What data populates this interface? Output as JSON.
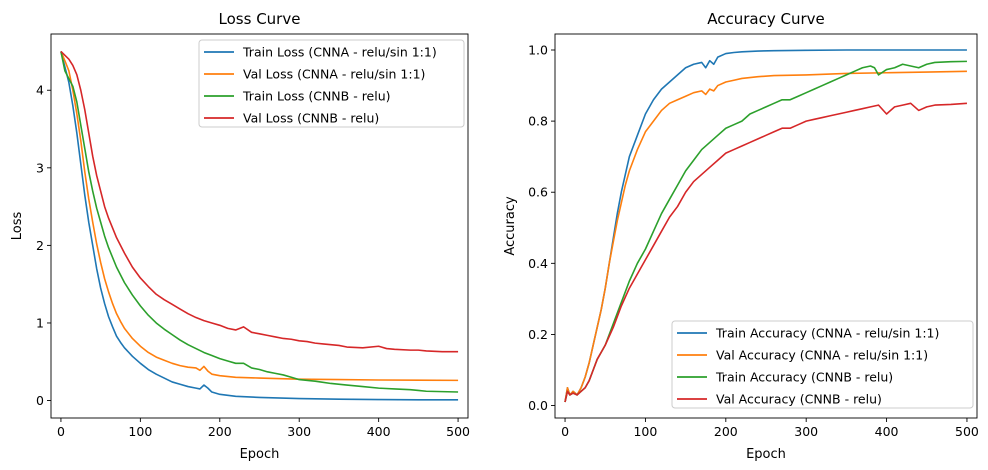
{
  "chart_data": [
    {
      "type": "line",
      "title": "Loss Curve",
      "xlabel": "Epoch",
      "ylabel": "Loss",
      "xlim": [
        -12.5,
        512.5
      ],
      "ylim": [
        -0.225,
        4.725
      ],
      "xticks": [
        0,
        100,
        200,
        300,
        400,
        500
      ],
      "yticks": [
        0,
        1,
        2,
        3,
        4
      ],
      "legend": "top-right",
      "series": [
        {
          "name": "Train Loss (CNNA - relu/sin 1:1)",
          "color": "#1f77b4",
          "x": [
            0,
            5,
            10,
            15,
            20,
            25,
            30,
            35,
            40,
            45,
            50,
            55,
            60,
            65,
            70,
            75,
            80,
            90,
            100,
            110,
            120,
            130,
            140,
            150,
            160,
            170,
            175,
            180,
            185,
            190,
            200,
            220,
            250,
            300,
            350,
            400,
            450,
            500
          ],
          "y": [
            4.5,
            4.3,
            4.1,
            3.8,
            3.45,
            3.05,
            2.65,
            2.3,
            2.0,
            1.7,
            1.45,
            1.25,
            1.08,
            0.95,
            0.83,
            0.75,
            0.68,
            0.57,
            0.48,
            0.4,
            0.34,
            0.29,
            0.24,
            0.21,
            0.18,
            0.16,
            0.15,
            0.2,
            0.16,
            0.11,
            0.08,
            0.055,
            0.04,
            0.025,
            0.018,
            0.013,
            0.01,
            0.01
          ]
        },
        {
          "name": "Val Loss (CNNA - relu/sin 1:1)",
          "color": "#ff7f0e",
          "x": [
            0,
            5,
            10,
            15,
            20,
            25,
            30,
            35,
            40,
            45,
            50,
            55,
            60,
            65,
            70,
            75,
            80,
            90,
            100,
            110,
            120,
            130,
            140,
            150,
            160,
            170,
            175,
            180,
            185,
            190,
            200,
            220,
            250,
            300,
            350,
            400,
            450,
            500
          ],
          "y": [
            4.5,
            4.38,
            4.25,
            4.0,
            3.7,
            3.35,
            2.95,
            2.6,
            2.3,
            2.02,
            1.78,
            1.57,
            1.4,
            1.25,
            1.12,
            1.02,
            0.93,
            0.8,
            0.7,
            0.62,
            0.56,
            0.52,
            0.48,
            0.45,
            0.43,
            0.42,
            0.39,
            0.44,
            0.38,
            0.34,
            0.32,
            0.3,
            0.29,
            0.275,
            0.27,
            0.265,
            0.262,
            0.26
          ]
        },
        {
          "name": "Train Loss (CNNB - relu)",
          "color": "#2ca02c",
          "x": [
            0,
            5,
            10,
            15,
            20,
            25,
            30,
            35,
            40,
            45,
            50,
            55,
            60,
            70,
            80,
            90,
            100,
            110,
            120,
            130,
            140,
            150,
            160,
            170,
            180,
            190,
            200,
            210,
            220,
            230,
            240,
            250,
            260,
            270,
            280,
            290,
            300,
            320,
            340,
            360,
            380,
            400,
            420,
            440,
            450,
            460,
            480,
            500
          ],
          "y": [
            4.5,
            4.25,
            4.15,
            4.05,
            3.85,
            3.55,
            3.25,
            2.95,
            2.7,
            2.48,
            2.3,
            2.12,
            1.97,
            1.72,
            1.52,
            1.36,
            1.22,
            1.1,
            1.0,
            0.92,
            0.85,
            0.78,
            0.72,
            0.67,
            0.62,
            0.58,
            0.54,
            0.51,
            0.48,
            0.48,
            0.42,
            0.4,
            0.37,
            0.35,
            0.33,
            0.3,
            0.27,
            0.25,
            0.22,
            0.2,
            0.18,
            0.16,
            0.15,
            0.14,
            0.13,
            0.12,
            0.115,
            0.11
          ]
        },
        {
          "name": "Val Loss (CNNB - relu)",
          "color": "#d62728",
          "x": [
            0,
            5,
            10,
            15,
            20,
            25,
            30,
            35,
            40,
            45,
            50,
            55,
            60,
            70,
            80,
            90,
            100,
            110,
            120,
            130,
            140,
            150,
            160,
            170,
            180,
            190,
            200,
            210,
            220,
            230,
            240,
            250,
            260,
            270,
            280,
            290,
            300,
            310,
            320,
            330,
            340,
            350,
            360,
            380,
            400,
            410,
            420,
            440,
            450,
            460,
            480,
            500
          ],
          "y": [
            4.5,
            4.45,
            4.4,
            4.32,
            4.2,
            4.0,
            3.75,
            3.45,
            3.15,
            2.9,
            2.7,
            2.5,
            2.35,
            2.1,
            1.9,
            1.72,
            1.58,
            1.47,
            1.37,
            1.3,
            1.24,
            1.18,
            1.12,
            1.07,
            1.03,
            1.0,
            0.97,
            0.93,
            0.91,
            0.95,
            0.88,
            0.86,
            0.84,
            0.82,
            0.8,
            0.79,
            0.77,
            0.76,
            0.74,
            0.73,
            0.72,
            0.71,
            0.69,
            0.68,
            0.7,
            0.67,
            0.66,
            0.65,
            0.65,
            0.64,
            0.63,
            0.63
          ]
        }
      ]
    },
    {
      "type": "line",
      "title": "Accuracy Curve",
      "xlabel": "Epoch",
      "ylabel": "Accuracy",
      "xlim": [
        -12.5,
        512.5
      ],
      "ylim": [
        -0.035,
        1.045
      ],
      "xticks": [
        0,
        100,
        200,
        300,
        400,
        500
      ],
      "yticks": [
        0.0,
        0.2,
        0.4,
        0.6,
        0.8,
        1.0
      ],
      "legend": "bottom-right",
      "series": [
        {
          "name": "Train Accuracy (CNNA - relu/sin 1:1)",
          "color": "#1f77b4",
          "x": [
            0,
            3,
            6,
            10,
            15,
            20,
            25,
            30,
            35,
            40,
            45,
            50,
            55,
            60,
            65,
            70,
            75,
            80,
            90,
            100,
            110,
            120,
            130,
            140,
            150,
            160,
            170,
            175,
            180,
            185,
            190,
            200,
            210,
            220,
            240,
            260,
            300,
            350,
            400,
            450,
            500
          ],
          "y": [
            0.01,
            0.05,
            0.03,
            0.04,
            0.03,
            0.05,
            0.08,
            0.12,
            0.17,
            0.22,
            0.27,
            0.33,
            0.4,
            0.47,
            0.54,
            0.6,
            0.65,
            0.7,
            0.76,
            0.82,
            0.86,
            0.89,
            0.91,
            0.93,
            0.95,
            0.96,
            0.965,
            0.95,
            0.97,
            0.96,
            0.98,
            0.99,
            0.993,
            0.995,
            0.997,
            0.998,
            0.999,
            1.0,
            1.0,
            1.0,
            1.0
          ]
        },
        {
          "name": "Val Accuracy (CNNA - relu/sin 1:1)",
          "color": "#ff7f0e",
          "x": [
            0,
            3,
            6,
            10,
            15,
            20,
            25,
            30,
            35,
            40,
            45,
            50,
            55,
            60,
            65,
            70,
            75,
            80,
            90,
            100,
            110,
            120,
            130,
            140,
            150,
            160,
            170,
            175,
            180,
            185,
            190,
            200,
            210,
            220,
            240,
            260,
            300,
            350,
            400,
            450,
            500
          ],
          "y": [
            0.01,
            0.05,
            0.03,
            0.04,
            0.03,
            0.05,
            0.08,
            0.12,
            0.17,
            0.22,
            0.27,
            0.33,
            0.4,
            0.46,
            0.52,
            0.57,
            0.62,
            0.66,
            0.72,
            0.77,
            0.8,
            0.83,
            0.85,
            0.86,
            0.87,
            0.88,
            0.885,
            0.875,
            0.89,
            0.885,
            0.9,
            0.91,
            0.915,
            0.92,
            0.925,
            0.928,
            0.93,
            0.934,
            0.936,
            0.938,
            0.94
          ]
        },
        {
          "name": "Train Accuracy (CNNB - relu)",
          "color": "#2ca02c",
          "x": [
            0,
            3,
            6,
            10,
            15,
            20,
            25,
            30,
            35,
            40,
            45,
            50,
            60,
            70,
            80,
            90,
            100,
            110,
            120,
            130,
            140,
            150,
            160,
            170,
            180,
            190,
            200,
            210,
            220,
            230,
            240,
            250,
            260,
            270,
            280,
            290,
            300,
            310,
            320,
            330,
            340,
            350,
            360,
            370,
            380,
            385,
            390,
            400,
            410,
            420,
            440,
            450,
            460,
            480,
            500
          ],
          "y": [
            0.01,
            0.04,
            0.03,
            0.035,
            0.03,
            0.04,
            0.05,
            0.07,
            0.1,
            0.13,
            0.15,
            0.17,
            0.23,
            0.29,
            0.35,
            0.4,
            0.44,
            0.49,
            0.54,
            0.58,
            0.62,
            0.66,
            0.69,
            0.72,
            0.74,
            0.76,
            0.78,
            0.79,
            0.8,
            0.82,
            0.83,
            0.84,
            0.85,
            0.86,
            0.86,
            0.87,
            0.88,
            0.89,
            0.9,
            0.91,
            0.92,
            0.93,
            0.94,
            0.95,
            0.955,
            0.95,
            0.93,
            0.945,
            0.95,
            0.96,
            0.95,
            0.96,
            0.965,
            0.967,
            0.968
          ]
        },
        {
          "name": "Val Accuracy (CNNB - relu)",
          "color": "#d62728",
          "x": [
            0,
            3,
            6,
            10,
            15,
            20,
            25,
            30,
            35,
            40,
            45,
            50,
            60,
            70,
            80,
            90,
            100,
            110,
            120,
            130,
            140,
            150,
            160,
            170,
            180,
            190,
            200,
            210,
            220,
            230,
            240,
            250,
            260,
            270,
            280,
            290,
            300,
            310,
            320,
            330,
            340,
            350,
            360,
            370,
            380,
            390,
            400,
            410,
            420,
            430,
            440,
            450,
            460,
            480,
            500
          ],
          "y": [
            0.01,
            0.04,
            0.03,
            0.035,
            0.03,
            0.04,
            0.05,
            0.07,
            0.1,
            0.13,
            0.15,
            0.17,
            0.22,
            0.28,
            0.33,
            0.37,
            0.41,
            0.45,
            0.49,
            0.53,
            0.56,
            0.6,
            0.63,
            0.65,
            0.67,
            0.69,
            0.71,
            0.72,
            0.73,
            0.74,
            0.75,
            0.76,
            0.77,
            0.78,
            0.78,
            0.79,
            0.8,
            0.805,
            0.81,
            0.815,
            0.82,
            0.825,
            0.83,
            0.835,
            0.84,
            0.845,
            0.82,
            0.84,
            0.845,
            0.85,
            0.83,
            0.84,
            0.845,
            0.847,
            0.85
          ]
        }
      ]
    }
  ]
}
